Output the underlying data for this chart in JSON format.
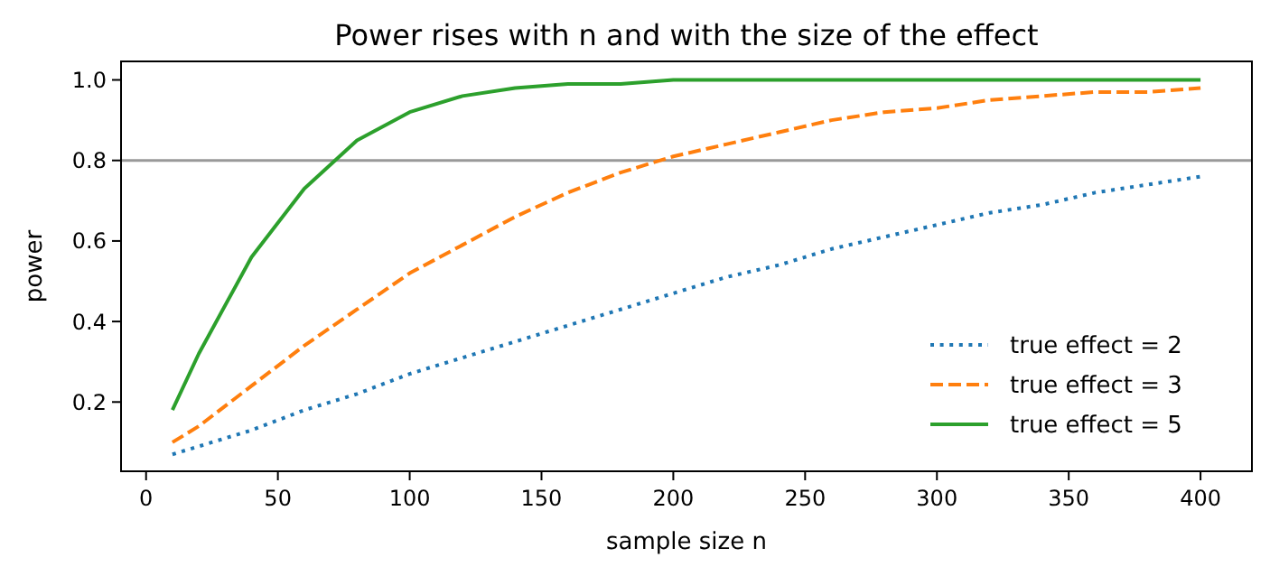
{
  "chart_data": {
    "type": "line",
    "title": "Power rises with n and with the size of the effect",
    "xlabel": "sample size n",
    "ylabel": "power",
    "x": [
      10,
      20,
      40,
      60,
      80,
      100,
      120,
      140,
      160,
      180,
      200,
      220,
      240,
      260,
      280,
      300,
      320,
      340,
      360,
      380,
      400
    ],
    "series": [
      {
        "name": "true effect = 2",
        "color": "#1f77b4",
        "line_style": "dotted",
        "values": [
          0.07,
          0.09,
          0.13,
          0.18,
          0.22,
          0.27,
          0.31,
          0.35,
          0.39,
          0.43,
          0.47,
          0.51,
          0.54,
          0.58,
          0.61,
          0.64,
          0.67,
          0.69,
          0.72,
          0.74,
          0.76
        ]
      },
      {
        "name": "true effect = 3",
        "color": "#ff7f0e",
        "line_style": "dashed",
        "values": [
          0.1,
          0.14,
          0.24,
          0.34,
          0.43,
          0.52,
          0.59,
          0.66,
          0.72,
          0.77,
          0.81,
          0.84,
          0.87,
          0.9,
          0.92,
          0.93,
          0.95,
          0.96,
          0.97,
          0.97,
          0.98
        ]
      },
      {
        "name": "true effect = 5",
        "color": "#2ca02c",
        "line_style": "solid",
        "values": [
          0.18,
          0.32,
          0.56,
          0.73,
          0.85,
          0.92,
          0.96,
          0.98,
          0.99,
          0.99,
          1.0,
          1.0,
          1.0,
          1.0,
          1.0,
          1.0,
          1.0,
          1.0,
          1.0,
          1.0,
          1.0
        ]
      }
    ],
    "xlim": [
      -9.5,
      419.5
    ],
    "ylim": [
      0.028,
      1.046
    ],
    "xticks": [
      0,
      50,
      100,
      150,
      200,
      250,
      300,
      350,
      400
    ],
    "yticks": [
      {
        "value": 0.2,
        "label": "0.2"
      },
      {
        "value": 0.4,
        "label": "0.4"
      },
      {
        "value": 0.6,
        "label": "0.6"
      },
      {
        "value": 0.8,
        "label": "0.8"
      },
      {
        "value": 1.0,
        "label": "1.0"
      }
    ],
    "ref_lines": [
      {
        "axis": "y",
        "value": 0.8,
        "color": "#999999"
      }
    ],
    "grid": false,
    "legend": "bottom right",
    "marker": "none"
  }
}
